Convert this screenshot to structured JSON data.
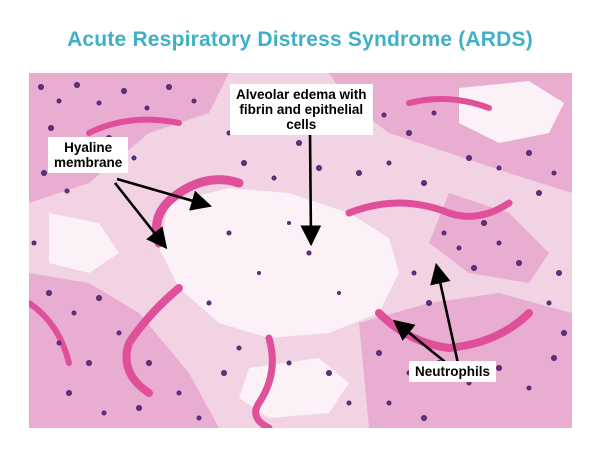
{
  "title": "Acute Respiratory Distress Syndrome (ARDS)",
  "labels": {
    "hyaline_line1": "Hyaline",
    "hyaline_line2": "membrane",
    "edema_line1": "Alveolar edema with",
    "edema_line2": "fibrin and epithelial",
    "edema_line3": "cells",
    "neutrophils": "Neutrophils"
  },
  "colors": {
    "title": "#3fb0c6",
    "tissue_background": "#f3d6e6",
    "hyaline_pink": "#e0509a",
    "nuclei_purple": "#5a2d7a",
    "arrow": "#000000"
  },
  "icons": [
    "arrow-icon"
  ]
}
